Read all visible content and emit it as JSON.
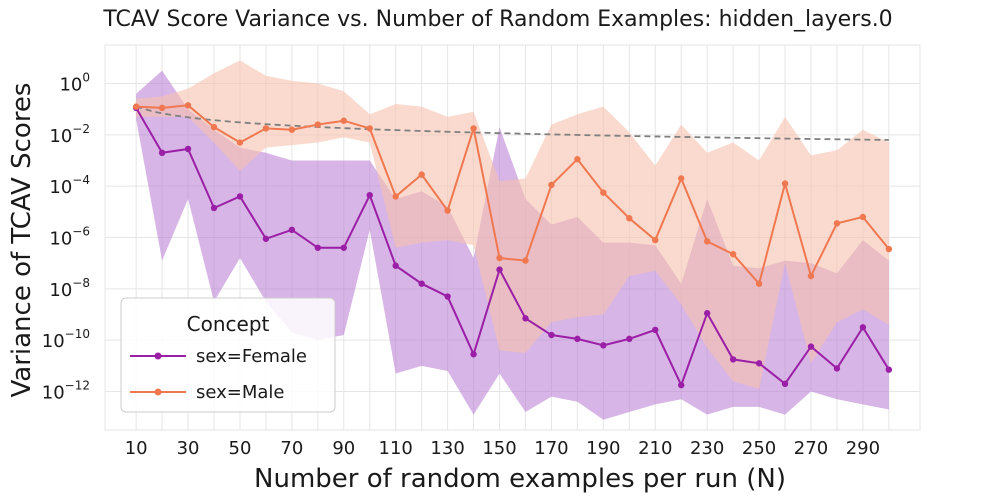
{
  "chart_data": {
    "type": "line",
    "title": "TCAV Score Variance vs. Number of Random Examples: hidden_layers.0",
    "xlabel": "Number of random examples per run (N)",
    "ylabel": "Variance of TCAV Scores",
    "yscale": "log",
    "ylim_log10": [
      -13.5,
      1.5
    ],
    "xlim": [
      -2,
      312
    ],
    "x": [
      10,
      20,
      30,
      40,
      50,
      60,
      70,
      80,
      90,
      100,
      110,
      120,
      130,
      140,
      150,
      160,
      170,
      180,
      190,
      200,
      210,
      220,
      230,
      240,
      250,
      260,
      270,
      280,
      290,
      300
    ],
    "x_tick_labels": [
      "10",
      "30",
      "50",
      "70",
      "90",
      "110",
      "130",
      "150",
      "170",
      "190",
      "210",
      "230",
      "250",
      "270",
      "290"
    ],
    "x_tick_values": [
      10,
      30,
      50,
      70,
      90,
      110,
      130,
      150,
      170,
      190,
      210,
      230,
      250,
      270,
      290
    ],
    "y_tick_exponents": [
      0,
      -2,
      -4,
      -6,
      -8,
      -10,
      -12
    ],
    "y_tick_base": "10",
    "grid": true,
    "legend": {
      "title": "Concept",
      "location": "lower-left"
    },
    "series": [
      {
        "name": "sex=Female",
        "color": "#9b1fa6",
        "band_color": "#b678d2",
        "log10_values": [
          -0.95,
          -2.7,
          -2.55,
          -4.85,
          -4.4,
          -6.05,
          -5.7,
          -6.4,
          -6.4,
          -4.35,
          -7.1,
          -7.8,
          -8.3,
          -10.55,
          -7.25,
          -9.15,
          -9.8,
          -9.95,
          -10.2,
          -9.95,
          -9.6,
          -11.75,
          -8.95,
          -10.75,
          -10.9,
          -11.7,
          -10.25,
          -11.1,
          -9.5,
          -11.15
        ],
        "band_upper_log10": [
          -0.4,
          0.5,
          -1.0,
          -1.8,
          -2.5,
          -2.7,
          -3.0,
          -3.0,
          -3.0,
          -3.0,
          -4.5,
          -4.2,
          -4.8,
          -6.8,
          -1.7,
          -4.5,
          -5.5,
          -5.2,
          -6.2,
          -6.2,
          -6.3,
          -7.8,
          -4.5,
          -7.1,
          -7.2,
          -6.9,
          -7.0,
          -7.4,
          -6.1,
          -6.9
        ],
        "band_lower_log10": [
          -1.4,
          -6.9,
          -4.5,
          -8.5,
          -6.8,
          -8.5,
          -9.7,
          -10.0,
          -9.8,
          -5.7,
          -11.3,
          -11.0,
          -11.2,
          -12.9,
          -11.3,
          -12.8,
          -12.2,
          -12.4,
          -13.1,
          -12.8,
          -12.5,
          -12.3,
          -12.9,
          -12.6,
          -12.6,
          -12.9,
          -12.0,
          -12.3,
          -12.5,
          -12.7
        ]
      },
      {
        "name": "sex=Male",
        "color": "#f07850",
        "band_color": "#f7c1ad",
        "log10_values": [
          -0.9,
          -0.95,
          -0.85,
          -1.7,
          -2.3,
          -1.75,
          -1.8,
          -1.6,
          -1.45,
          -1.75,
          -4.4,
          -3.55,
          -4.95,
          -1.75,
          -6.8,
          -6.9,
          -3.95,
          -2.95,
          -4.25,
          -5.25,
          -6.1,
          -3.7,
          -6.15,
          -6.65,
          -7.8,
          -3.9,
          -7.5,
          -5.45,
          -5.2,
          -6.45
        ],
        "band_upper_log10": [
          -0.6,
          -0.5,
          -0.2,
          0.4,
          0.9,
          0.3,
          0.1,
          0.0,
          -0.3,
          -1.2,
          -0.8,
          -0.9,
          -1.3,
          -1.1,
          -3.8,
          -3.7,
          -1.6,
          -1.2,
          -0.9,
          -1.9,
          -3.2,
          -1.6,
          -2.7,
          -2.3,
          -3.0,
          -1.3,
          -2.8,
          -2.6,
          -1.8,
          -2.3
        ],
        "band_lower_log10": [
          -1.3,
          -1.3,
          -1.3,
          -2.3,
          -3.4,
          -2.5,
          -2.4,
          -2.3,
          -2.1,
          -2.3,
          -6.4,
          -6.2,
          -6.1,
          -6.3,
          -10.4,
          -10.5,
          -9.3,
          -9.1,
          -9.0,
          -7.5,
          -7.3,
          -8.6,
          -10.3,
          -11.6,
          -11.9,
          -7.0,
          -10.9,
          -9.3,
          -8.8,
          -9.4
        ]
      }
    ],
    "trend_line": {
      "color": "#808080",
      "x_from": 10,
      "x_to": 300,
      "log10_from": -0.9,
      "log10_to": -2.2
    }
  }
}
